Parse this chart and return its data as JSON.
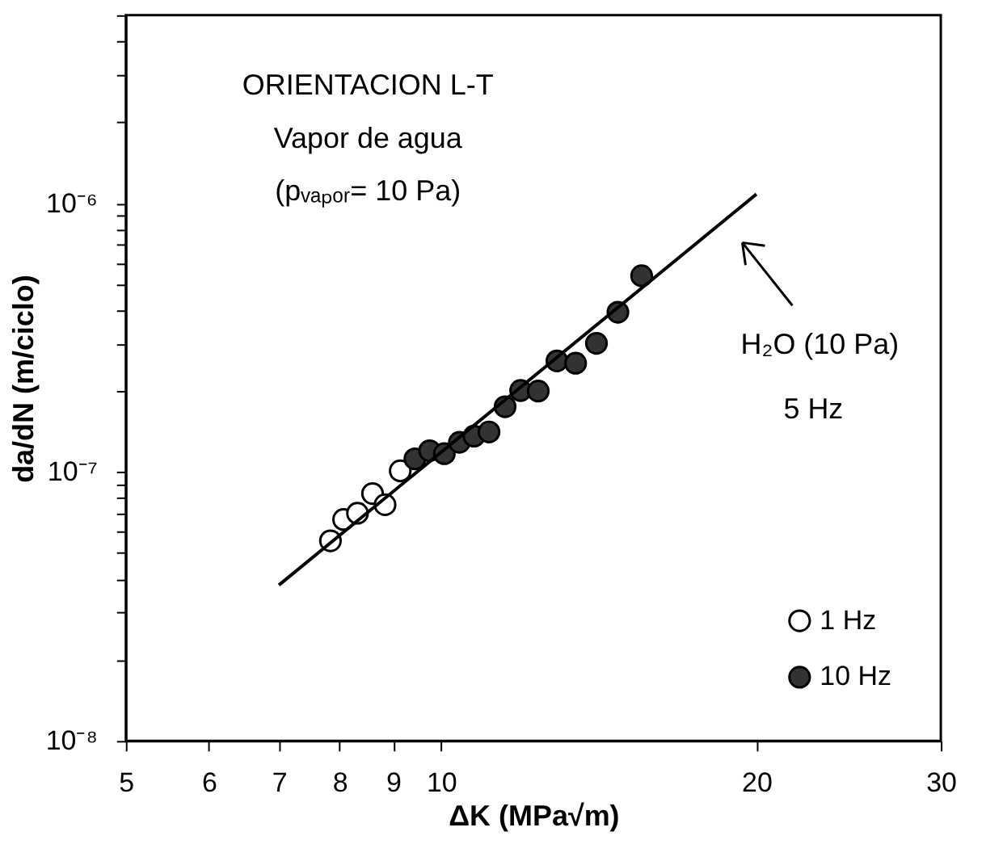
{
  "chart_data": {
    "type": "scatter",
    "xlabel": "ΔK  (MPa√m)",
    "ylabel": "da/dN  (m/ciclo)",
    "log": "xy",
    "grid": false,
    "legend": "bottom right",
    "marker": "circle",
    "xlim": [
      5,
      30
    ],
    "xticks": [
      5,
      6,
      7,
      8,
      9,
      10,
      20,
      30
    ],
    "ylim": [
      1e-08,
      5e-06
    ],
    "yticks": [
      {
        "value": 1e-08,
        "label": "10⁻⁸"
      },
      {
        "value": 2e-08,
        "label": null
      },
      {
        "value": 3e-08,
        "label": null
      },
      {
        "value": 4e-08,
        "label": null
      },
      {
        "value": 5e-08,
        "label": null
      },
      {
        "value": 6e-08,
        "label": null
      },
      {
        "value": 7e-08,
        "label": null
      },
      {
        "value": 8e-08,
        "label": null
      },
      {
        "value": 9e-08,
        "label": null
      },
      {
        "value": 1e-07,
        "label": "10⁻⁷"
      },
      {
        "value": 2e-07,
        "label": null
      },
      {
        "value": 3e-07,
        "label": null
      },
      {
        "value": 4e-07,
        "label": null
      },
      {
        "value": 5e-07,
        "label": null
      },
      {
        "value": 6e-07,
        "label": null
      },
      {
        "value": 7e-07,
        "label": null
      },
      {
        "value": 8e-07,
        "label": null
      },
      {
        "value": 9e-07,
        "label": null
      },
      {
        "value": 1e-06,
        "label": "10⁻⁶"
      },
      {
        "value": 2e-06,
        "label": null
      },
      {
        "value": 3e-06,
        "label": null
      },
      {
        "value": 4e-06,
        "label": null
      },
      {
        "value": 5e-06,
        "label": null
      }
    ],
    "annotations": [
      "ORIENTACION L-T",
      "Vapor de agua",
      "(pᵥₐₚₒᵣ= 10 Pa)",
      "H₂O (10 Pa)\n5 Hz"
    ],
    "series": [
      {
        "name": "1 Hz",
        "color": "#ffffff",
        "x": [
          7.84,
          8.07,
          8.32,
          8.6,
          8.84,
          9.14
        ],
        "values": [
          5.55e-08,
          6.66e-08,
          7.03e-08,
          8.32e-08,
          7.56e-08,
          1.01e-07
        ]
      },
      {
        "name": "10 Hz",
        "color": "#333333",
        "x": [
          9.44,
          9.75,
          10.07,
          10.41,
          10.75,
          11.11,
          11.51,
          11.91,
          12.38,
          12.9,
          13.44,
          14.07,
          14.75,
          15.54
        ],
        "values": [
          1.12e-07,
          1.2e-07,
          1.17e-07,
          1.29e-07,
          1.36e-07,
          1.41e-07,
          1.75e-07,
          2.01e-07,
          2e-07,
          2.59e-07,
          2.54e-07,
          3.01e-07,
          3.93e-07,
          5.37e-07
        ]
      },
      {
        "type": "line",
        "color": "#000000",
        "line_style": "solid",
        "marker": "none",
        "x": [
          7.0,
          20.0
        ],
        "values": [
          3.8e-08,
          1.08e-06
        ]
      }
    ]
  }
}
